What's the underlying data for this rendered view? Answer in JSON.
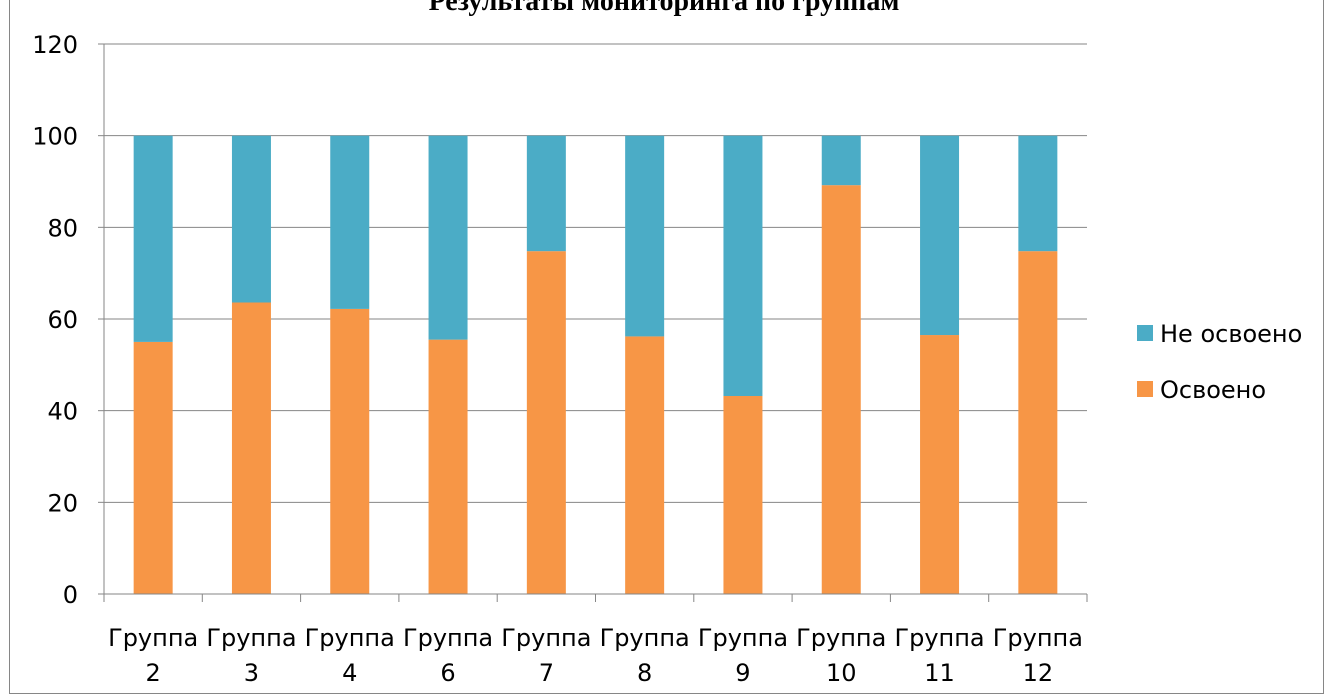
{
  "chart_data": {
    "type": "bar",
    "stacked": true,
    "title": "Результаты мониторинга по группам",
    "categories": [
      [
        "Группа",
        "2"
      ],
      [
        "Группа",
        "3"
      ],
      [
        "Группа",
        "4"
      ],
      [
        "Группа",
        "6"
      ],
      [
        "Группа",
        "7"
      ],
      [
        "Группа",
        "8"
      ],
      [
        "Группа",
        "9"
      ],
      [
        "Группа",
        "10"
      ],
      [
        "Группа",
        "11"
      ],
      [
        "Группа",
        "12"
      ]
    ],
    "series": [
      {
        "name": "Освоено",
        "color": "#f79646",
        "values": [
          55,
          63.6,
          62.2,
          55.5,
          74.8,
          56.2,
          43.2,
          89.2,
          56.5,
          74.8
        ]
      },
      {
        "name": "Не освоено",
        "color": "#4bacc6",
        "values": [
          45,
          36.4,
          37.8,
          44.5,
          25.2,
          43.8,
          56.8,
          10.8,
          43.5,
          25.2
        ]
      }
    ],
    "legend_order": [
      "Не освоено",
      "Освоено"
    ],
    "ylim": [
      0,
      120
    ],
    "yticks": [
      0,
      20,
      40,
      60,
      80,
      100,
      120
    ],
    "grid": true,
    "legend_position": "right"
  }
}
